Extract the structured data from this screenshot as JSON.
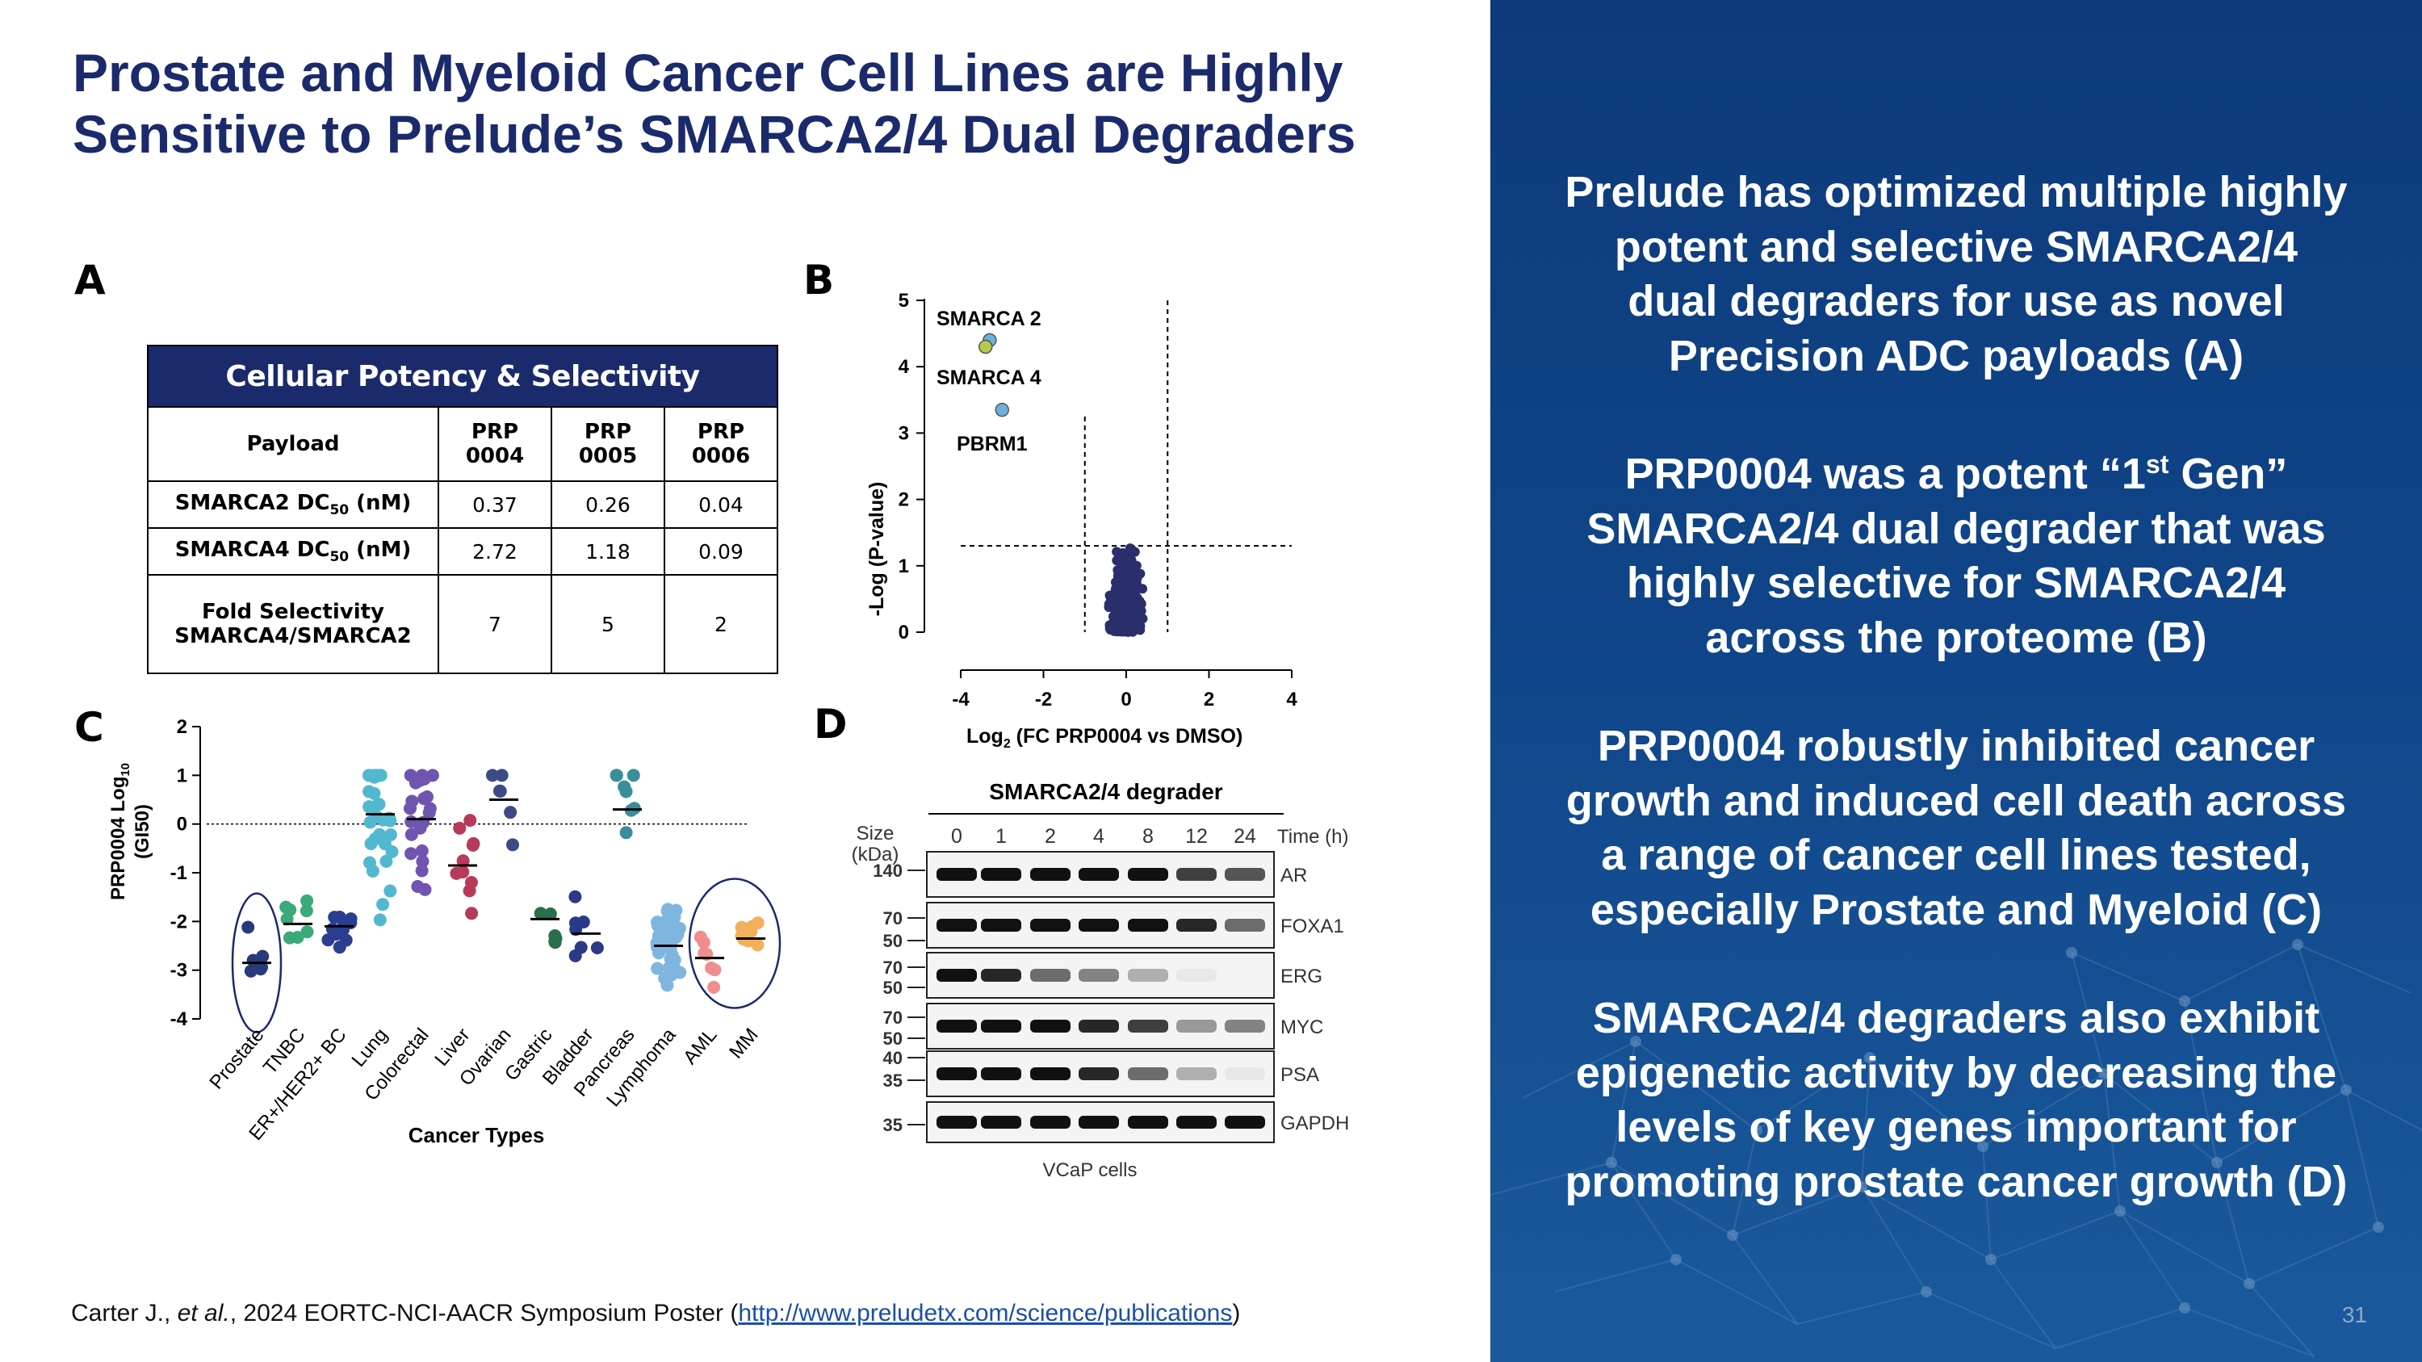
{
  "title": {
    "line1": "Prostate and Myeloid Cancer Cell Lines are Highly",
    "line2": "Sensitive to Prelude’s SMARCA2/4 Dual Degraders"
  },
  "panel_letters": {
    "a": "A",
    "b": "B",
    "c": "C",
    "d": "D"
  },
  "table": {
    "header": "Cellular Potency & Selectivity",
    "col_payload": "Payload",
    "cols": [
      [
        "PRP",
        "0004"
      ],
      [
        "PRP",
        "0005"
      ],
      [
        "PRP",
        "0006"
      ]
    ],
    "rows": [
      {
        "label": "SMARCA2 DC",
        "sub": "50",
        "unit": " (nM)",
        "values": [
          "0.37",
          "0.26",
          "0.04"
        ]
      },
      {
        "label": "SMARCA4 DC",
        "sub": "50",
        "unit": " (nM)",
        "values": [
          "2.72",
          "1.18",
          "0.09"
        ]
      }
    ],
    "fold_label_1": "Fold Selectivity",
    "fold_label_2": "SMARCA4/SMARCA2",
    "fold_values": [
      "7",
      "5",
      "2"
    ]
  },
  "chart_data": [
    {
      "type": "scatter",
      "panel": "B",
      "xlabel": "Log2 (FC PRP0004 vs DMSO)",
      "ylabel": "-Log (P-value)",
      "xlim": [
        -4,
        4
      ],
      "ylim": [
        0,
        5
      ],
      "xticks": [
        "-4",
        "-2",
        "0",
        "2",
        "4"
      ],
      "yticks": [
        "0",
        "1",
        "2",
        "3",
        "4",
        "5"
      ],
      "annotations": [
        "SMARCA 2",
        "SMARCA 4",
        "PBRM1"
      ],
      "highlighted": [
        {
          "name": "SMARCA 2",
          "x": -3.3,
          "y": 4.4
        },
        {
          "name": "SMARCA 4",
          "x": -3.4,
          "y": 4.3
        },
        {
          "name": "PBRM1",
          "x": -3.0,
          "y": 3.35
        }
      ],
      "thresholds": {
        "x": [
          -1,
          1
        ],
        "y": 1.3
      }
    },
    {
      "type": "scatter",
      "panel": "C",
      "xlabel": "Cancer Types",
      "ylabel_1": "PRP0004 Log10",
      "ylabel_2": "(GI50)",
      "ylim": [
        -4,
        2
      ],
      "yticks": [
        "-4",
        "-3",
        "-2",
        "-1",
        "0",
        "1",
        "2"
      ],
      "categories": [
        "Prostate",
        "TNBC",
        "ER+/HER2+ BC",
        "Lung",
        "Colorectal",
        "Liver",
        "Ovarian",
        "Gastric",
        "Bladder",
        "Pancreas",
        "Lymphoma",
        "AML",
        "MM"
      ],
      "medians": [
        -2.85,
        -2.05,
        -2.1,
        0.2,
        0.1,
        -0.85,
        0.5,
        -1.95,
        -2.25,
        0.3,
        -2.5,
        -2.75,
        -2.35
      ],
      "colors": [
        "#283a7a",
        "#3aaa78",
        "#2a3d8f",
        "#52b8d0",
        "#7055b0",
        "#b83a5a",
        "#3c4a86",
        "#2a6e4a",
        "#2a3a86",
        "#3a8e9a",
        "#7fb6e0",
        "#f08e8e",
        "#f2b05a"
      ]
    }
  ],
  "blot": {
    "title": "SMARCA2/4 degrader",
    "size_label_1": "Size",
    "size_label_2": "(kDa)",
    "time_label": "Time (h)",
    "times": [
      "0",
      "1",
      "2",
      "4",
      "8",
      "12",
      "24"
    ],
    "markers": [
      "140",
      "70",
      "50",
      "70",
      "50",
      "70",
      "50",
      "40",
      "35",
      "35"
    ],
    "proteins": [
      "AR",
      "FOXA1",
      "ERG",
      "MYC",
      "PSA",
      "GAPDH"
    ],
    "cell_line": "VCaP cells"
  },
  "bullets": [
    [
      "Prelude has optimized multiple highly",
      "potent and selective SMARCA2/4",
      "dual degraders for use as novel",
      "Precision ADC payloads (A)"
    ],
    [
      "PRP0004 was a potent “1",
      "st",
      " Gen”",
      "SMARCA2/4 dual degrader that was",
      "highly selective for SMARCA2/4",
      "across the proteome (B)"
    ],
    [
      "PRP0004 robustly inhibited cancer",
      "growth and induced cell death across",
      "a range of cancer cell lines tested,",
      "especially Prostate and Myeloid (C)"
    ],
    [
      "SMARCA2/4 degraders also exhibit",
      "epigenetic activity by decreasing the",
      "levels of key genes important for",
      "promoting prostate cancer growth (D)"
    ]
  ],
  "citation": {
    "authors": "Carter J., ",
    "etal": "et al.",
    "rest": ", 2024 EORTC-NCI-AACR Symposium Poster (",
    "link": "http://www.preludetx.com/science/publications",
    "close": ")"
  },
  "page_number": "31"
}
